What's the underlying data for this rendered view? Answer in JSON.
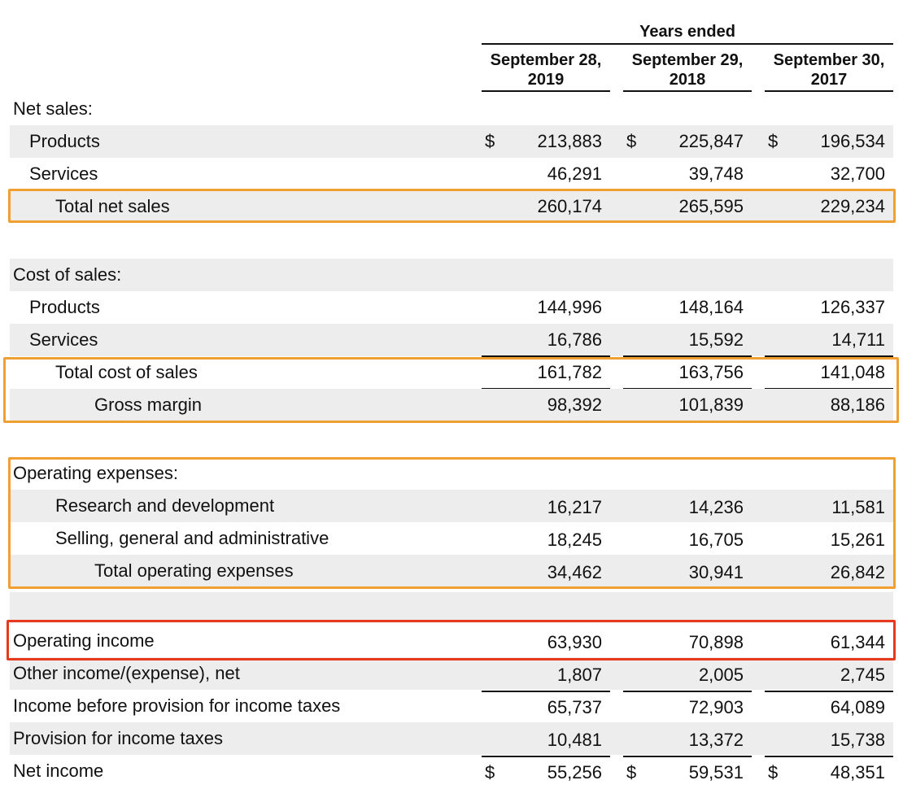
{
  "header": {
    "period_title": "Years ended",
    "columns": [
      {
        "line1": "September 28,",
        "line2": "2019"
      },
      {
        "line1": "September 29,",
        "line2": "2018"
      },
      {
        "line1": "September 30,",
        "line2": "2017"
      }
    ]
  },
  "currency_symbol": "$",
  "rows": [
    {
      "label": "Net sales:",
      "values": [
        "",
        "",
        ""
      ]
    },
    {
      "label": "Products",
      "values": [
        "213,883",
        "225,847",
        "196,534"
      ]
    },
    {
      "label": "Services",
      "values": [
        "46,291",
        "39,748",
        "32,700"
      ]
    },
    {
      "label": "Total net sales",
      "values": [
        "260,174",
        "265,595",
        "229,234"
      ]
    },
    {
      "label": "Cost of sales:",
      "values": [
        "",
        "",
        ""
      ]
    },
    {
      "label": "Products",
      "values": [
        "144,996",
        "148,164",
        "126,337"
      ]
    },
    {
      "label": "Services",
      "values": [
        "16,786",
        "15,592",
        "14,711"
      ]
    },
    {
      "label": "Total cost of sales",
      "values": [
        "161,782",
        "163,756",
        "141,048"
      ]
    },
    {
      "label": "Gross margin",
      "values": [
        "98,392",
        "101,839",
        "88,186"
      ]
    },
    {
      "label": "Operating expenses:",
      "values": [
        "",
        "",
        ""
      ]
    },
    {
      "label": "Research and development",
      "values": [
        "16,217",
        "14,236",
        "11,581"
      ]
    },
    {
      "label": "Selling, general and administrative",
      "values": [
        "18,245",
        "16,705",
        "15,261"
      ]
    },
    {
      "label": "Total operating expenses",
      "values": [
        "34,462",
        "30,941",
        "26,842"
      ]
    },
    {
      "label": "Operating income",
      "values": [
        "63,930",
        "70,898",
        "61,344"
      ]
    },
    {
      "label": "Other income/(expense), net",
      "values": [
        "1,807",
        "2,005",
        "2,745"
      ]
    },
    {
      "label": "Income before provision for income taxes",
      "values": [
        "65,737",
        "72,903",
        "64,089"
      ]
    },
    {
      "label": "Provision for income taxes",
      "values": [
        "10,481",
        "13,372",
        "15,738"
      ]
    },
    {
      "label": "Net income",
      "values": [
        "55,256",
        "59,531",
        "48,351"
      ]
    }
  ],
  "highlight_colors": {
    "orange": "#f0a030",
    "red": "#e8381e"
  }
}
